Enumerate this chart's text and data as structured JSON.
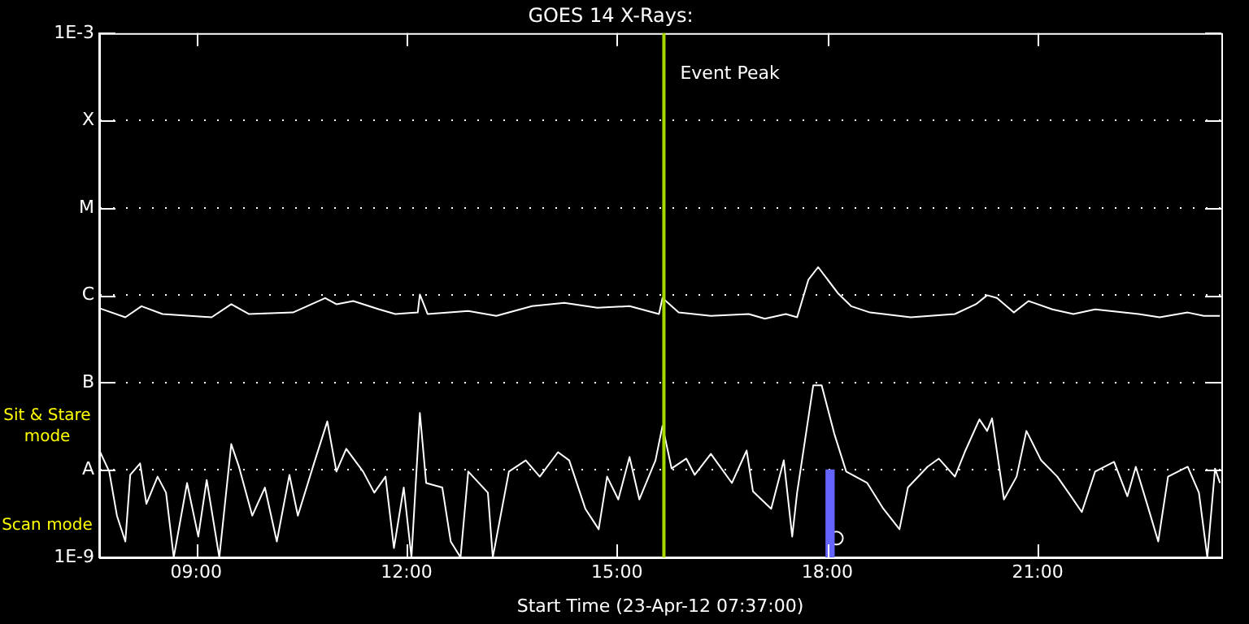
{
  "chart_data": {
    "type": "line",
    "title": "GOES 14 X-Rays:",
    "xlabel": "Start Time (23-Apr-12 07:37:00)",
    "xlim": [
      7.617,
      23.62
    ],
    "xticks": [
      {
        "value": 9,
        "label": "09:00"
      },
      {
        "value": 12,
        "label": "12:00"
      },
      {
        "value": 15,
        "label": "15:00"
      },
      {
        "value": 18,
        "label": "18:00"
      },
      {
        "value": 21,
        "label": "21:00"
      }
    ],
    "ylim": [
      1e-09,
      0.001
    ],
    "log": true,
    "yticks": [
      {
        "value": 1e-09,
        "label": "1E-9"
      },
      {
        "value": 1e-08,
        "label": "A"
      },
      {
        "value": 1e-07,
        "label": "B"
      },
      {
        "value": 1e-06,
        "label": "C"
      },
      {
        "value": 1e-05,
        "label": "M"
      },
      {
        "value": 0.0001,
        "label": "X"
      },
      {
        "value": 0.001,
        "label": "1E-3"
      }
    ],
    "grid": "y",
    "legend": false,
    "marker": "none",
    "series": [
      {
        "color": "#ffffff",
        "x": [
          7.62,
          7.99,
          8.22,
          8.52,
          9.22,
          9.5,
          9.75,
          10.38,
          10.84,
          11.0,
          11.24,
          11.61,
          11.84,
          12.16,
          12.19,
          12.3,
          12.88,
          13.28,
          13.79,
          14.25,
          14.72,
          15.18,
          15.6,
          15.65,
          15.88,
          16.34,
          16.88,
          17.11,
          17.41,
          17.57,
          17.73,
          17.87,
          18.15,
          18.34,
          18.61,
          19.19,
          19.82,
          20.12,
          20.28,
          20.42,
          20.66,
          20.87,
          21.21,
          21.51,
          21.82,
          22.44,
          22.74,
          23.14,
          23.37,
          23.6
        ],
        "values": [
          7.1e-07,
          5.6e-07,
          7.5e-07,
          6.1e-07,
          5.6e-07,
          7.9e-07,
          6.1e-07,
          6.35e-07,
          9.3e-07,
          7.9e-07,
          8.6e-07,
          6.9e-07,
          6.1e-07,
          6.35e-07,
          1.02e-06,
          6.1e-07,
          6.6e-07,
          5.8e-07,
          7.5e-07,
          8.2e-07,
          7.2e-07,
          7.5e-07,
          6.1e-07,
          9.3e-07,
          6.35e-07,
          5.8e-07,
          6.1e-07,
          5.4e-07,
          6.1e-07,
          5.6e-07,
          1.5e-06,
          2.1e-06,
          1.06e-06,
          7.5e-07,
          6.35e-07,
          5.6e-07,
          6.1e-07,
          7.9e-07,
          1e-06,
          9.3e-07,
          6.35e-07,
          8.6e-07,
          6.9e-07,
          6.1e-07,
          6.9e-07,
          6.1e-07,
          5.6e-07,
          6.35e-07,
          5.8e-07,
          5.8e-07
        ]
      },
      {
        "color": "#ffffff",
        "x": [
          7.62,
          7.76,
          7.87,
          7.99,
          8.06,
          8.2,
          8.29,
          8.45,
          8.57,
          8.68,
          8.87,
          9.03,
          9.15,
          9.33,
          9.5,
          9.61,
          9.8,
          9.98,
          10.15,
          10.33,
          10.45,
          10.68,
          10.87,
          11.0,
          11.14,
          11.38,
          11.54,
          11.7,
          11.82,
          11.96,
          12.07,
          12.19,
          12.28,
          12.51,
          12.63,
          12.77,
          12.88,
          13.16,
          13.23,
          13.46,
          13.7,
          13.9,
          14.16,
          14.32,
          14.55,
          14.74,
          14.86,
          15.02,
          15.18,
          15.32,
          15.55,
          15.65,
          15.78,
          15.99,
          16.11,
          16.34,
          16.64,
          16.85,
          16.94,
          17.2,
          17.38,
          17.5,
          17.57,
          17.8,
          17.92,
          18.1,
          18.27,
          18.57,
          18.8,
          19.03,
          19.15,
          19.43,
          19.59,
          19.82,
          19.96,
          20.17,
          20.28,
          20.35,
          20.52,
          20.7,
          20.84,
          21.05,
          21.28,
          21.44,
          21.63,
          21.82,
          22.09,
          22.28,
          22.4,
          22.56,
          22.72,
          22.86,
          23.14,
          23.3,
          23.42,
          23.53,
          23.6
        ],
        "values": [
          1.67e-08,
          9.6e-09,
          3e-09,
          1.52e-09,
          8.8e-09,
          1.19e-08,
          4.1e-09,
          8.4e-09,
          5.5e-09,
          1e-09,
          7.1e-09,
          1.73e-09,
          7.7e-09,
          1e-09,
          1.98e-08,
          1.09e-08,
          3e-09,
          6.3e-09,
          1.52e-09,
          8.8e-09,
          3e-09,
          1.19e-08,
          3.6e-08,
          9.6e-09,
          1.75e-08,
          9.6e-09,
          5.5e-09,
          8.4e-09,
          1.28e-09,
          6.3e-09,
          1e-09,
          4.5e-08,
          7.1e-09,
          6.3e-09,
          1.52e-09,
          1e-09,
          9.6e-09,
          5.5e-09,
          1e-09,
          9.6e-09,
          1.29e-08,
          8.4e-09,
          1.6e-08,
          1.29e-08,
          3.6e-09,
          2.1e-09,
          8.4e-09,
          4.6e-09,
          1.41e-08,
          4.6e-09,
          1.29e-08,
          3.2e-08,
          1.04e-08,
          1.35e-08,
          8.8e-09,
          1.53e-08,
          7.1e-09,
          1.67e-08,
          5.7e-09,
          3.6e-09,
          1.29e-08,
          1.73e-09,
          5.5e-09,
          9.3e-08,
          9.3e-08,
          2.6e-08,
          9.6e-09,
          7.1e-09,
          3.6e-09,
          2.1e-09,
          6.3e-09,
          1.09e-08,
          1.35e-08,
          8.4e-09,
          1.6e-08,
          3.8e-08,
          2.8e-08,
          3.9e-08,
          4.6e-09,
          8.4e-09,
          2.8e-08,
          1.29e-08,
          8.4e-09,
          5.5e-09,
          3.3e-09,
          9.6e-09,
          1.24e-08,
          5e-09,
          1.09e-08,
          4.1e-09,
          1.52e-09,
          8.4e-09,
          1.09e-08,
          5.5e-09,
          1e-09,
          1.04e-08,
          7.1e-09
        ]
      },
      {
        "type": "bar",
        "color": "#6464ff",
        "x": [
          18.04
        ],
        "base": [
          1e-09
        ],
        "values": [
          9e-09
        ]
      },
      {
        "type": "scatter",
        "marker": "circle",
        "color": "#ffffff",
        "x": [
          18.13
        ],
        "values": [
          1.66e-09
        ]
      }
    ],
    "ref_lines": [
      {
        "axis": "x",
        "value": 15.67,
        "label": "Event Peak",
        "color": "#a8d800"
      }
    ],
    "annotations": [
      "Sit & Stare mode",
      "Scan mode"
    ]
  }
}
